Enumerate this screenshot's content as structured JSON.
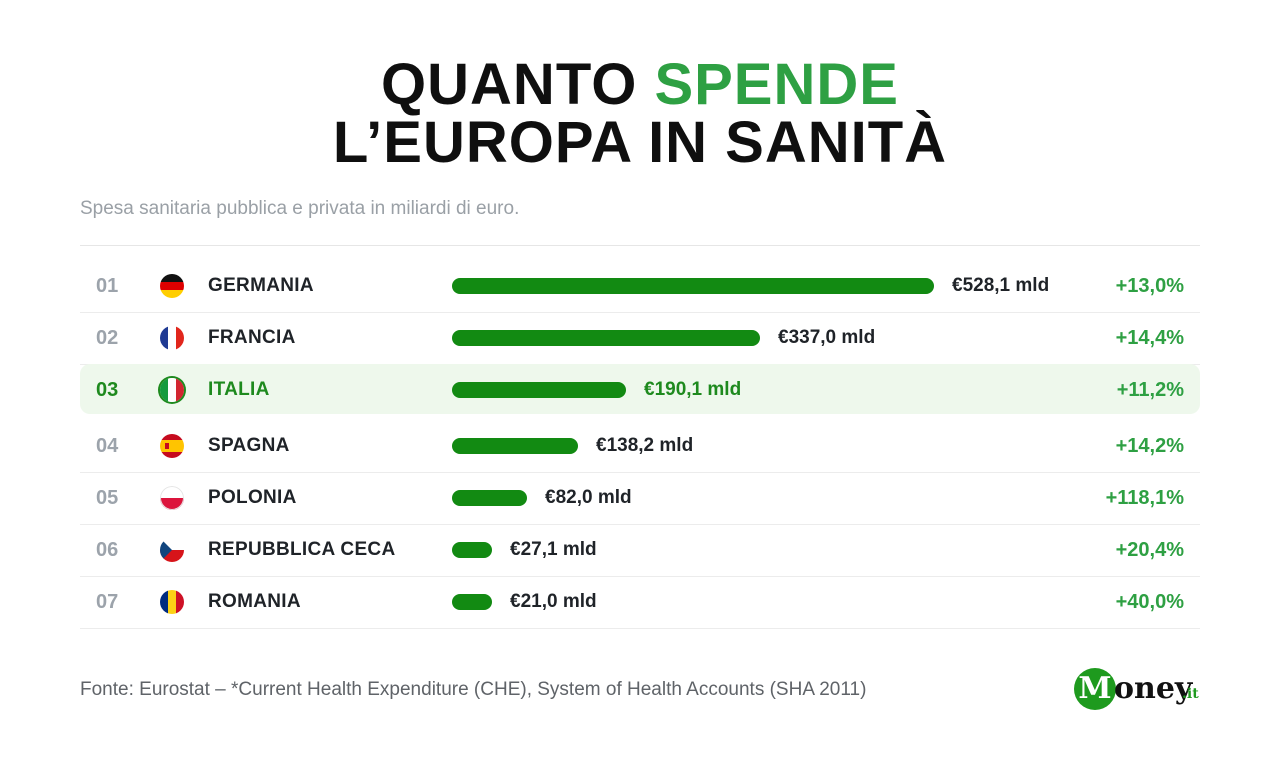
{
  "title": {
    "line1_before": "QUANTO ",
    "line1_accent": "SPENDE",
    "line2": "L’EUROPA IN SANITÀ",
    "accent_color": "#2ea043"
  },
  "subtitle": "Spesa sanitaria pubblica e privata in miliardi di euro.",
  "chart_data": {
    "type": "bar",
    "orientation": "horizontal",
    "unit": "miliardi di euro",
    "bar_color": "#128a12",
    "highlight": "ITALIA",
    "categories": [
      "GERMANIA",
      "FRANCIA",
      "ITALIA",
      "SPAGNA",
      "POLONIA",
      "REPUBBLICA CECA",
      "ROMANIA"
    ],
    "values": [
      528.1,
      337.0,
      190.1,
      138.2,
      82.0,
      27.1,
      21.0
    ],
    "rows": [
      {
        "rank": "01",
        "country": "GERMANIA",
        "flag": "germany-flag",
        "value": 528.1,
        "value_label": "€528,1 mld",
        "growth": "+13,0%"
      },
      {
        "rank": "02",
        "country": "FRANCIA",
        "flag": "france-flag",
        "value": 337.0,
        "value_label": "€337,0 mld",
        "growth": "+14,4%"
      },
      {
        "rank": "03",
        "country": "ITALIA",
        "flag": "italy-flag",
        "value": 190.1,
        "value_label": "€190,1 mld",
        "growth": "+11,2%",
        "highlighted": true
      },
      {
        "rank": "04",
        "country": "SPAGNA",
        "flag": "spain-flag",
        "value": 138.2,
        "value_label": "€138,2 mld",
        "growth": "+14,2%"
      },
      {
        "rank": "05",
        "country": "POLONIA",
        "flag": "poland-flag",
        "value": 82.0,
        "value_label": "€82,0 mld",
        "growth": "+118,1%"
      },
      {
        "rank": "06",
        "country": "REPUBBLICA CECA",
        "flag": "czech-flag",
        "value": 27.1,
        "value_label": "€27,1 mld",
        "growth": "+20,4%"
      },
      {
        "rank": "07",
        "country": "ROMANIA",
        "flag": "romania-flag",
        "value": 21.0,
        "value_label": "€21,0 mld",
        "growth": "+40,0%"
      }
    ]
  },
  "source": "Fonte: Eurostat – *Current Health Expenditure (CHE), System of Health Accounts (SHA 2011)",
  "logo": {
    "m": "M",
    "word": "oney",
    "tld": ".it",
    "color": "#1e9a1e"
  }
}
